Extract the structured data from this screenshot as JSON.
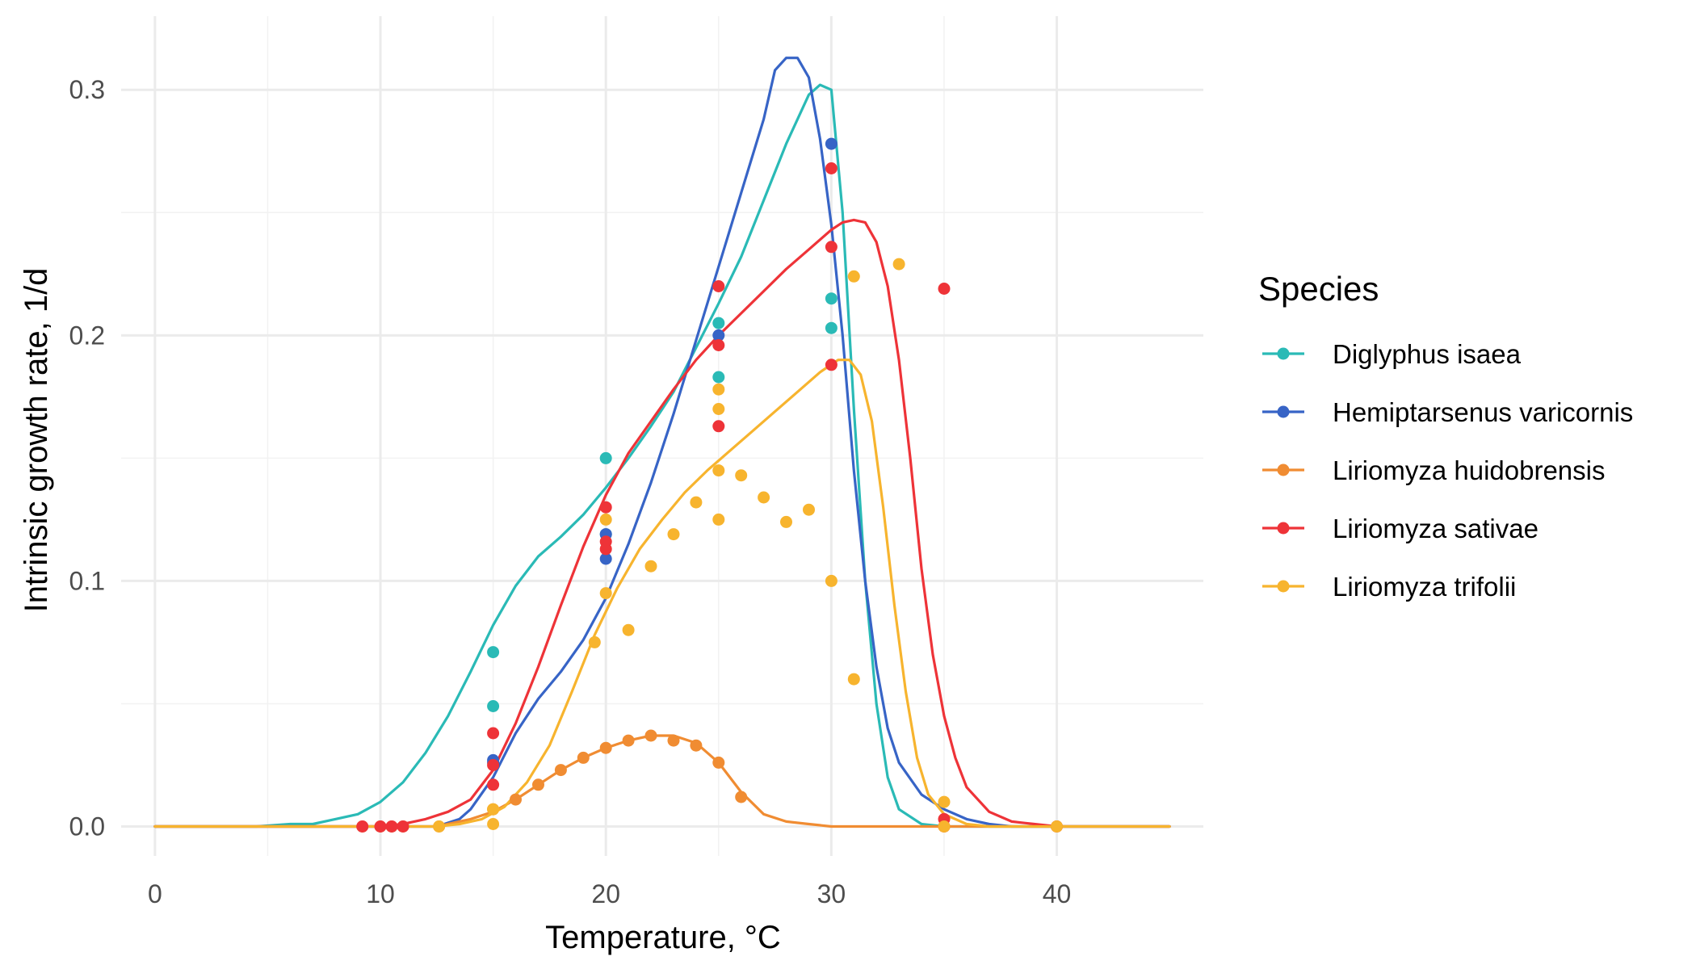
{
  "chart_data": {
    "type": "line",
    "xlabel": "Temperature, °C",
    "ylabel": "Intrinsic growth rate, 1/d",
    "xlim": [
      -1.5,
      46.5
    ],
    "ylim": [
      -0.012,
      0.33
    ],
    "x_ticks": [
      0,
      10,
      20,
      30,
      40
    ],
    "y_ticks": [
      0.0,
      0.1,
      0.2,
      0.3
    ],
    "x_tick_labels": [
      "0",
      "10",
      "20",
      "30",
      "40"
    ],
    "y_tick_labels": [
      "0.0",
      "0.1",
      "0.2",
      "0.3"
    ],
    "grid": true,
    "legend": {
      "title": "Species",
      "position": "right"
    },
    "series": [
      {
        "name": "Diglyphus isaea",
        "color": "#2ABAB6",
        "points": [
          [
            15,
            0.071
          ],
          [
            15,
            0.049
          ],
          [
            20,
            0.15
          ],
          [
            20,
            0.119
          ],
          [
            25,
            0.205
          ],
          [
            25,
            0.183
          ],
          [
            30,
            0.215
          ],
          [
            30,
            0.203
          ]
        ],
        "curve": [
          [
            0,
            0
          ],
          [
            4.5,
            0.0
          ],
          [
            6,
            0.001
          ],
          [
            7,
            0.001
          ],
          [
            8,
            0.003
          ],
          [
            9,
            0.005
          ],
          [
            10,
            0.01
          ],
          [
            11,
            0.018
          ],
          [
            12,
            0.03
          ],
          [
            13,
            0.045
          ],
          [
            14,
            0.063
          ],
          [
            15,
            0.082
          ],
          [
            16,
            0.098
          ],
          [
            17,
            0.11
          ],
          [
            18,
            0.118
          ],
          [
            19,
            0.127
          ],
          [
            20,
            0.138
          ],
          [
            21,
            0.15
          ],
          [
            22,
            0.163
          ],
          [
            23,
            0.177
          ],
          [
            24,
            0.195
          ],
          [
            25,
            0.213
          ],
          [
            26,
            0.232
          ],
          [
            27,
            0.255
          ],
          [
            28,
            0.278
          ],
          [
            29,
            0.298
          ],
          [
            29.5,
            0.302
          ],
          [
            30,
            0.3
          ],
          [
            30.5,
            0.25
          ],
          [
            31,
            0.17
          ],
          [
            31.5,
            0.1
          ],
          [
            32,
            0.05
          ],
          [
            32.5,
            0.02
          ],
          [
            33,
            0.007
          ],
          [
            34,
            0.001
          ],
          [
            35,
            0.0
          ],
          [
            45,
            0.0
          ]
        ]
      },
      {
        "name": "Hemiptarsenus varicornis",
        "color": "#3764C6",
        "points": [
          [
            15,
            0.027
          ],
          [
            15,
            0.026
          ],
          [
            20,
            0.109
          ],
          [
            20,
            0.119
          ],
          [
            25,
            0.2
          ],
          [
            30,
            0.278
          ]
        ],
        "curve": [
          [
            0,
            0
          ],
          [
            12.5,
            0.0
          ],
          [
            13.5,
            0.003
          ],
          [
            14,
            0.007
          ],
          [
            15,
            0.02
          ],
          [
            16,
            0.038
          ],
          [
            17,
            0.052
          ],
          [
            18,
            0.063
          ],
          [
            19,
            0.076
          ],
          [
            20,
            0.093
          ],
          [
            21,
            0.115
          ],
          [
            22,
            0.14
          ],
          [
            23,
            0.168
          ],
          [
            24,
            0.198
          ],
          [
            25,
            0.228
          ],
          [
            26,
            0.258
          ],
          [
            27,
            0.288
          ],
          [
            27.5,
            0.308
          ],
          [
            28,
            0.313
          ],
          [
            28.5,
            0.313
          ],
          [
            29,
            0.305
          ],
          [
            29.5,
            0.28
          ],
          [
            30,
            0.245
          ],
          [
            30.5,
            0.2
          ],
          [
            31,
            0.145
          ],
          [
            31.5,
            0.1
          ],
          [
            32,
            0.065
          ],
          [
            32.5,
            0.04
          ],
          [
            33,
            0.026
          ],
          [
            34,
            0.013
          ],
          [
            35,
            0.007
          ],
          [
            36,
            0.003
          ],
          [
            37,
            0.001
          ],
          [
            38,
            0.0
          ],
          [
            45,
            0.0
          ]
        ]
      },
      {
        "name": "Liriomyza huidobrensis",
        "color": "#F08C32",
        "points": [
          [
            9.2,
            0.0
          ],
          [
            10,
            0.0
          ],
          [
            10.5,
            0.0
          ],
          [
            11,
            0.0
          ],
          [
            12.6,
            0.0
          ],
          [
            15,
            0.007
          ],
          [
            16,
            0.011
          ],
          [
            17,
            0.017
          ],
          [
            18,
            0.023
          ],
          [
            19,
            0.028
          ],
          [
            20,
            0.032
          ],
          [
            21,
            0.035
          ],
          [
            22,
            0.037
          ],
          [
            23,
            0.035
          ],
          [
            24,
            0.033
          ],
          [
            25,
            0.026
          ],
          [
            26,
            0.012
          ],
          [
            35,
            0.0
          ],
          [
            40,
            0.0
          ]
        ],
        "curve": [
          [
            0,
            0
          ],
          [
            12.5,
            0.0
          ],
          [
            14,
            0.003
          ],
          [
            15,
            0.006
          ],
          [
            16,
            0.011
          ],
          [
            17,
            0.017
          ],
          [
            18,
            0.023
          ],
          [
            19,
            0.028
          ],
          [
            20,
            0.032
          ],
          [
            21,
            0.035
          ],
          [
            22,
            0.037
          ],
          [
            23,
            0.037
          ],
          [
            24,
            0.034
          ],
          [
            25,
            0.026
          ],
          [
            26,
            0.014
          ],
          [
            27,
            0.005
          ],
          [
            28,
            0.002
          ],
          [
            29,
            0.001
          ],
          [
            30,
            0.0
          ],
          [
            45,
            0.0
          ]
        ]
      },
      {
        "name": "Liriomyza sativae",
        "color": "#EE3338",
        "points": [
          [
            9.2,
            0.0
          ],
          [
            10,
            0.0
          ],
          [
            10.5,
            0.0
          ],
          [
            11,
            0.0
          ],
          [
            15,
            0.038
          ],
          [
            15,
            0.025
          ],
          [
            15,
            0.017
          ],
          [
            20,
            0.13
          ],
          [
            20,
            0.116
          ],
          [
            20,
            0.113
          ],
          [
            25,
            0.22
          ],
          [
            25,
            0.196
          ],
          [
            25,
            0.163
          ],
          [
            30,
            0.268
          ],
          [
            30,
            0.236
          ],
          [
            30,
            0.188
          ],
          [
            35,
            0.219
          ],
          [
            35,
            0.003
          ],
          [
            35,
            0.0
          ],
          [
            40,
            0.0
          ]
        ],
        "curve": [
          [
            0,
            0
          ],
          [
            10,
            0.0
          ],
          [
            11,
            0.001
          ],
          [
            12,
            0.003
          ],
          [
            13,
            0.006
          ],
          [
            14,
            0.011
          ],
          [
            15,
            0.023
          ],
          [
            16,
            0.042
          ],
          [
            17,
            0.065
          ],
          [
            18,
            0.09
          ],
          [
            19,
            0.114
          ],
          [
            20,
            0.135
          ],
          [
            21,
            0.152
          ],
          [
            22,
            0.165
          ],
          [
            23,
            0.178
          ],
          [
            24,
            0.19
          ],
          [
            25,
            0.2
          ],
          [
            26,
            0.209
          ],
          [
            27,
            0.218
          ],
          [
            28,
            0.227
          ],
          [
            29,
            0.235
          ],
          [
            30,
            0.243
          ],
          [
            30.5,
            0.246
          ],
          [
            31,
            0.247
          ],
          [
            31.5,
            0.246
          ],
          [
            32,
            0.238
          ],
          [
            32.5,
            0.22
          ],
          [
            33,
            0.19
          ],
          [
            33.5,
            0.15
          ],
          [
            34,
            0.105
          ],
          [
            34.5,
            0.07
          ],
          [
            35,
            0.045
          ],
          [
            35.5,
            0.028
          ],
          [
            36,
            0.016
          ],
          [
            37,
            0.006
          ],
          [
            38,
            0.002
          ],
          [
            39,
            0.001
          ],
          [
            40,
            0.0
          ],
          [
            45,
            0.0
          ]
        ]
      },
      {
        "name": "Liriomyza trifolii",
        "color": "#F7B42E",
        "points": [
          [
            12.6,
            0.0
          ],
          [
            15,
            0.007
          ],
          [
            15,
            0.001
          ],
          [
            19.5,
            0.075
          ],
          [
            20,
            0.125
          ],
          [
            20,
            0.095
          ],
          [
            21,
            0.08
          ],
          [
            22,
            0.106
          ],
          [
            23,
            0.119
          ],
          [
            24,
            0.132
          ],
          [
            25,
            0.178
          ],
          [
            25,
            0.17
          ],
          [
            25,
            0.145
          ],
          [
            25,
            0.125
          ],
          [
            26,
            0.143
          ],
          [
            27,
            0.134
          ],
          [
            28,
            0.124
          ],
          [
            29,
            0.129
          ],
          [
            30,
            0.1
          ],
          [
            31,
            0.224
          ],
          [
            31,
            0.06
          ],
          [
            33,
            0.229
          ],
          [
            35,
            0.01
          ],
          [
            35,
            0.0
          ],
          [
            40,
            0.0
          ]
        ],
        "curve": [
          [
            0,
            0
          ],
          [
            12.5,
            0.0
          ],
          [
            13.5,
            0.001
          ],
          [
            14.5,
            0.003
          ],
          [
            15.5,
            0.008
          ],
          [
            16.5,
            0.018
          ],
          [
            17.5,
            0.033
          ],
          [
            18.5,
            0.055
          ],
          [
            19.5,
            0.078
          ],
          [
            20.5,
            0.097
          ],
          [
            21.5,
            0.113
          ],
          [
            22.5,
            0.125
          ],
          [
            23.5,
            0.136
          ],
          [
            24.5,
            0.145
          ],
          [
            25.5,
            0.153
          ],
          [
            26.5,
            0.161
          ],
          [
            27.5,
            0.169
          ],
          [
            28.5,
            0.177
          ],
          [
            29.5,
            0.185
          ],
          [
            30.3,
            0.19
          ],
          [
            30.8,
            0.19
          ],
          [
            31.3,
            0.184
          ],
          [
            31.8,
            0.165
          ],
          [
            32.3,
            0.13
          ],
          [
            32.8,
            0.09
          ],
          [
            33.3,
            0.055
          ],
          [
            33.8,
            0.028
          ],
          [
            34.3,
            0.013
          ],
          [
            35,
            0.005
          ],
          [
            36,
            0.001
          ],
          [
            37,
            0.0
          ],
          [
            45,
            0.0
          ]
        ]
      }
    ]
  }
}
